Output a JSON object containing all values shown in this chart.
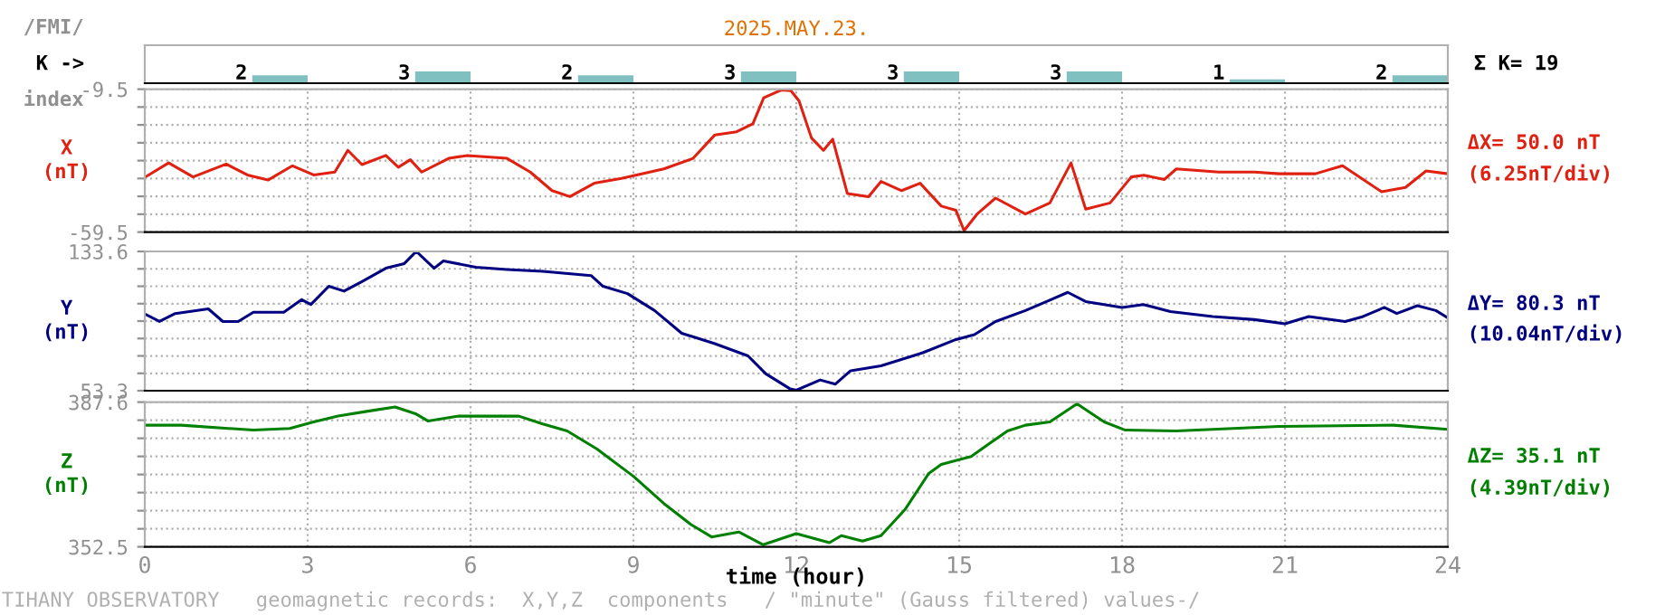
{
  "chart_data": [
    {
      "type": "bar",
      "title": "2025.MAY.23.",
      "ylabel": "K ->",
      "categories": [
        null,
        null,
        null,
        null,
        null,
        null,
        null,
        null
      ],
      "values": [
        2,
        3,
        2,
        3,
        3,
        3,
        1,
        2
      ],
      "color": "#80c0c0",
      "data_labels": true,
      "tick_labels": false,
      "annotations": [
        "/FMI/",
        "index",
        "Σ K= 19"
      ]
    },
    {
      "type": "line",
      "ylabel": "X\n(nT)",
      "xlim": [
        0,
        24
      ],
      "xticks": [
        0,
        3,
        6,
        9,
        12,
        15,
        18,
        21,
        24
      ],
      "ylim": [
        -59.5,
        -9.5
      ],
      "yticks": [
        -9.5,
        {
          "value": -15.75,
          "label": null
        },
        {
          "value": -22,
          "label": null
        },
        {
          "value": -28.25,
          "label": null
        },
        {
          "value": -34.5,
          "label": null
        },
        {
          "value": -40.75,
          "label": null
        },
        {
          "value": -47,
          "label": null
        },
        {
          "value": -53.25,
          "label": null
        },
        -59.5
      ],
      "grid": true,
      "tick_labels": "y",
      "annotations": [
        "ΔX= 50.0 nT",
        "(6.25nT/div)"
      ],
      "series": [
        {
          "color": "#e02010",
          "x": [
            0.03,
            0.44,
            0.89,
            1.5,
            1.89,
            2.27,
            2.72,
            3.11,
            3.5,
            3.74,
            4.0,
            4.44,
            4.67,
            4.89,
            5.1,
            5.6,
            5.94,
            6.67,
            7.1,
            7.5,
            7.83,
            8.28,
            8.78,
            9.56,
            10.1,
            10.5,
            10.9,
            11.2,
            11.4,
            11.72,
            11.9,
            12.05,
            12.28,
            12.5,
            12.67,
            12.94,
            13.33,
            13.56,
            13.94,
            14.28,
            14.67,
            14.94,
            15.09,
            15.33,
            15.67,
            16.22,
            16.67,
            17.06,
            17.33,
            17.78,
            18.17,
            18.4,
            18.78,
            19.0,
            19.78,
            20.44,
            20.89,
            21.56,
            22.06,
            22.33,
            22.78,
            23.22,
            23.6,
            24.0
          ],
          "values": [
            -40.0,
            -35.3,
            -40.2,
            -35.7,
            -39.5,
            -41.3,
            -36.3,
            -39.5,
            -38.5,
            -30.9,
            -35.9,
            -32.7,
            -36.8,
            -34.2,
            -38.5,
            -33.7,
            -32.7,
            -33.7,
            -38.5,
            -45.0,
            -47.1,
            -42.4,
            -40.7,
            -37.4,
            -33.7,
            -25.5,
            -24.4,
            -21.6,
            -12.5,
            -9.8,
            -10.0,
            -13.6,
            -26.6,
            -30.9,
            -27.0,
            -46.0,
            -47.1,
            -41.8,
            -45.0,
            -42.4,
            -50.4,
            -51.9,
            -59.0,
            -53.2,
            -47.6,
            -53.2,
            -49.3,
            -35.3,
            -51.5,
            -49.3,
            -40.2,
            -39.6,
            -41.1,
            -37.4,
            -38.5,
            -38.5,
            -39.1,
            -39.1,
            -36.3,
            -39.7,
            -45.4,
            -43.9,
            -38.1,
            -39.1
          ]
        }
      ]
    },
    {
      "type": "line",
      "ylabel": "Y\n(nT)",
      "xlim": [
        0,
        24
      ],
      "xticks": [
        0,
        3,
        6,
        9,
        12,
        15,
        18,
        21,
        24
      ],
      "ylim": [
        53.3,
        133.6
      ],
      "yticks": [
        133.6,
        {
          "value": 123.56,
          "label": null
        },
        {
          "value": 113.52,
          "label": null
        },
        {
          "value": 103.48,
          "label": null
        },
        {
          "value": 93.44,
          "label": null
        },
        {
          "value": 83.4,
          "label": null
        },
        {
          "value": 73.36,
          "label": null
        },
        {
          "value": 63.32,
          "label": null
        },
        53.3
      ],
      "grid": true,
      "tick_labels": "y",
      "annotations": [
        "ΔY= 80.3 nT",
        "(10.04nT/div)"
      ],
      "series": [
        {
          "color": "#000080",
          "x": [
            0.03,
            0.27,
            0.56,
            1.17,
            1.44,
            1.72,
            2.0,
            2.56,
            2.89,
            3.06,
            3.39,
            3.67,
            4.0,
            4.44,
            4.78,
            5.0,
            5.33,
            5.5,
            6.1,
            6.67,
            7.33,
            8.22,
            8.44,
            8.89,
            9.39,
            9.89,
            10.5,
            11.11,
            11.44,
            11.89,
            12.0,
            12.44,
            12.72,
            13.0,
            13.56,
            14.33,
            14.94,
            15.28,
            15.67,
            16.22,
            16.61,
            17.0,
            17.33,
            18.0,
            18.39,
            18.89,
            19.67,
            20.44,
            21.0,
            21.44,
            22.11,
            22.44,
            22.83,
            23.06,
            23.44,
            23.78,
            24.0
          ],
          "values": [
            97.1,
            93.2,
            97.8,
            100.5,
            93.2,
            93.2,
            98.5,
            98.5,
            105.8,
            103.0,
            113.5,
            110.7,
            116.2,
            123.9,
            126.6,
            133.6,
            123.9,
            128.1,
            124.5,
            123.2,
            122.1,
            119.7,
            113.5,
            109.3,
            99.5,
            86.4,
            80.4,
            73.4,
            63.0,
            54.3,
            53.6,
            59.5,
            57.1,
            64.8,
            67.6,
            75.2,
            82.8,
            85.6,
            93.2,
            99.5,
            104.7,
            110.0,
            104.7,
            101.3,
            103.0,
            98.9,
            96.1,
            94.3,
            91.9,
            96.1,
            93.2,
            96.1,
            101.3,
            97.8,
            102.3,
            99.5,
            95.3
          ]
        }
      ]
    },
    {
      "type": "line",
      "ylabel": "Z\n(nT)",
      "xlabel": "time (hour)",
      "xlim": [
        0,
        24
      ],
      "xticks": [
        0,
        3,
        6,
        9,
        12,
        15,
        18,
        21,
        24
      ],
      "ylim": [
        352.5,
        387.6
      ],
      "yticks": [
        387.6,
        {
          "value": 383.21,
          "label": null
        },
        {
          "value": 378.82,
          "label": null
        },
        {
          "value": 374.43,
          "label": null
        },
        {
          "value": 370.04,
          "label": null
        },
        {
          "value": 365.65,
          "label": null
        },
        {
          "value": 361.26,
          "label": null
        },
        {
          "value": 356.87,
          "label": null
        },
        352.5
      ],
      "grid": true,
      "annotations": [
        "ΔZ= 35.1 nT",
        "(4.39nT/div)",
        "TIHANY OBSERVATORY   geomagnetic records:  X,Y,Z  components   / \"minute\" (Gauss filtered) values-/"
      ],
      "series": [
        {
          "color": "#008000",
          "x": [
            0.03,
            0.67,
            2.0,
            2.67,
            3.11,
            3.56,
            4.11,
            4.61,
            5.0,
            5.22,
            5.78,
            6.89,
            7.33,
            7.78,
            8.33,
            9.0,
            9.56,
            10.06,
            10.44,
            10.94,
            11.39,
            12.0,
            12.61,
            12.83,
            13.22,
            13.56,
            14.0,
            14.44,
            14.67,
            15.22,
            15.56,
            15.89,
            16.22,
            16.67,
            17.17,
            17.67,
            18.06,
            19.0,
            20.89,
            23.0,
            24.0
          ],
          "values": [
            382.0,
            382.0,
            380.8,
            381.2,
            382.8,
            384.2,
            385.4,
            386.4,
            384.7,
            383.0,
            384.2,
            384.2,
            382.3,
            380.6,
            376.2,
            369.6,
            363.0,
            357.9,
            354.9,
            356.1,
            353.0,
            355.7,
            353.5,
            355.2,
            353.9,
            355.2,
            361.5,
            370.3,
            372.5,
            374.4,
            377.6,
            380.6,
            382.0,
            382.8,
            387.2,
            382.8,
            380.8,
            380.6,
            381.7,
            382.0,
            381.0
          ]
        }
      ]
    }
  ]
}
